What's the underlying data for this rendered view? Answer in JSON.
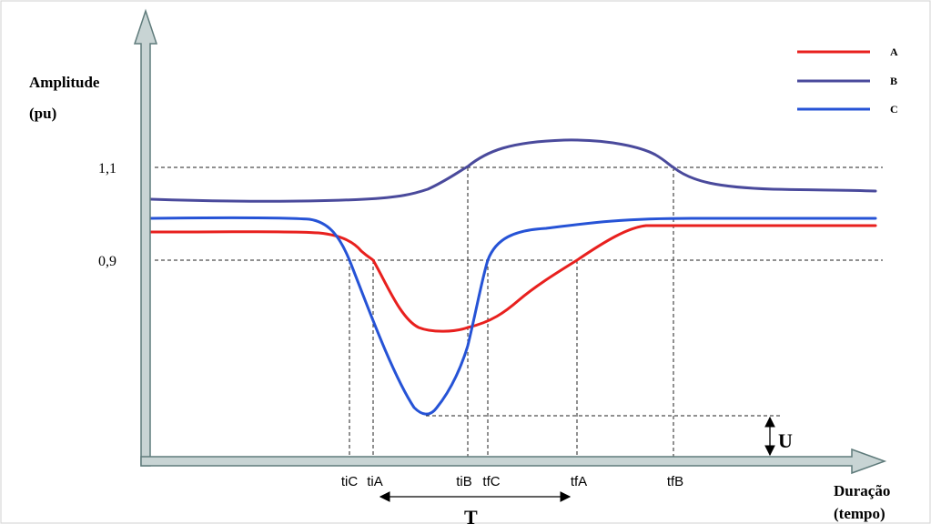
{
  "y_axis_title_line1": "Amplitude",
  "y_axis_title_line2": "(pu)",
  "x_axis_title_line1": "Duração",
  "x_axis_title_line2": "(tempo)",
  "y_ticks": [
    "1,1",
    "0,9"
  ],
  "x_markers": [
    "tiC",
    "tiA",
    "tiB",
    "tfC",
    "tfA",
    "tfB"
  ],
  "legend": [
    {
      "label": "A",
      "color": "#e8201e"
    },
    {
      "label": "B",
      "color": "#4a4a9c"
    },
    {
      "label": "C",
      "color": "#2653d6"
    }
  ],
  "duration_label": "T",
  "depth_label": "U",
  "colors": {
    "axis_fill": "#c8d4d4",
    "axis_stroke": "#5f7b7b",
    "border": "#d0d0d0"
  }
}
